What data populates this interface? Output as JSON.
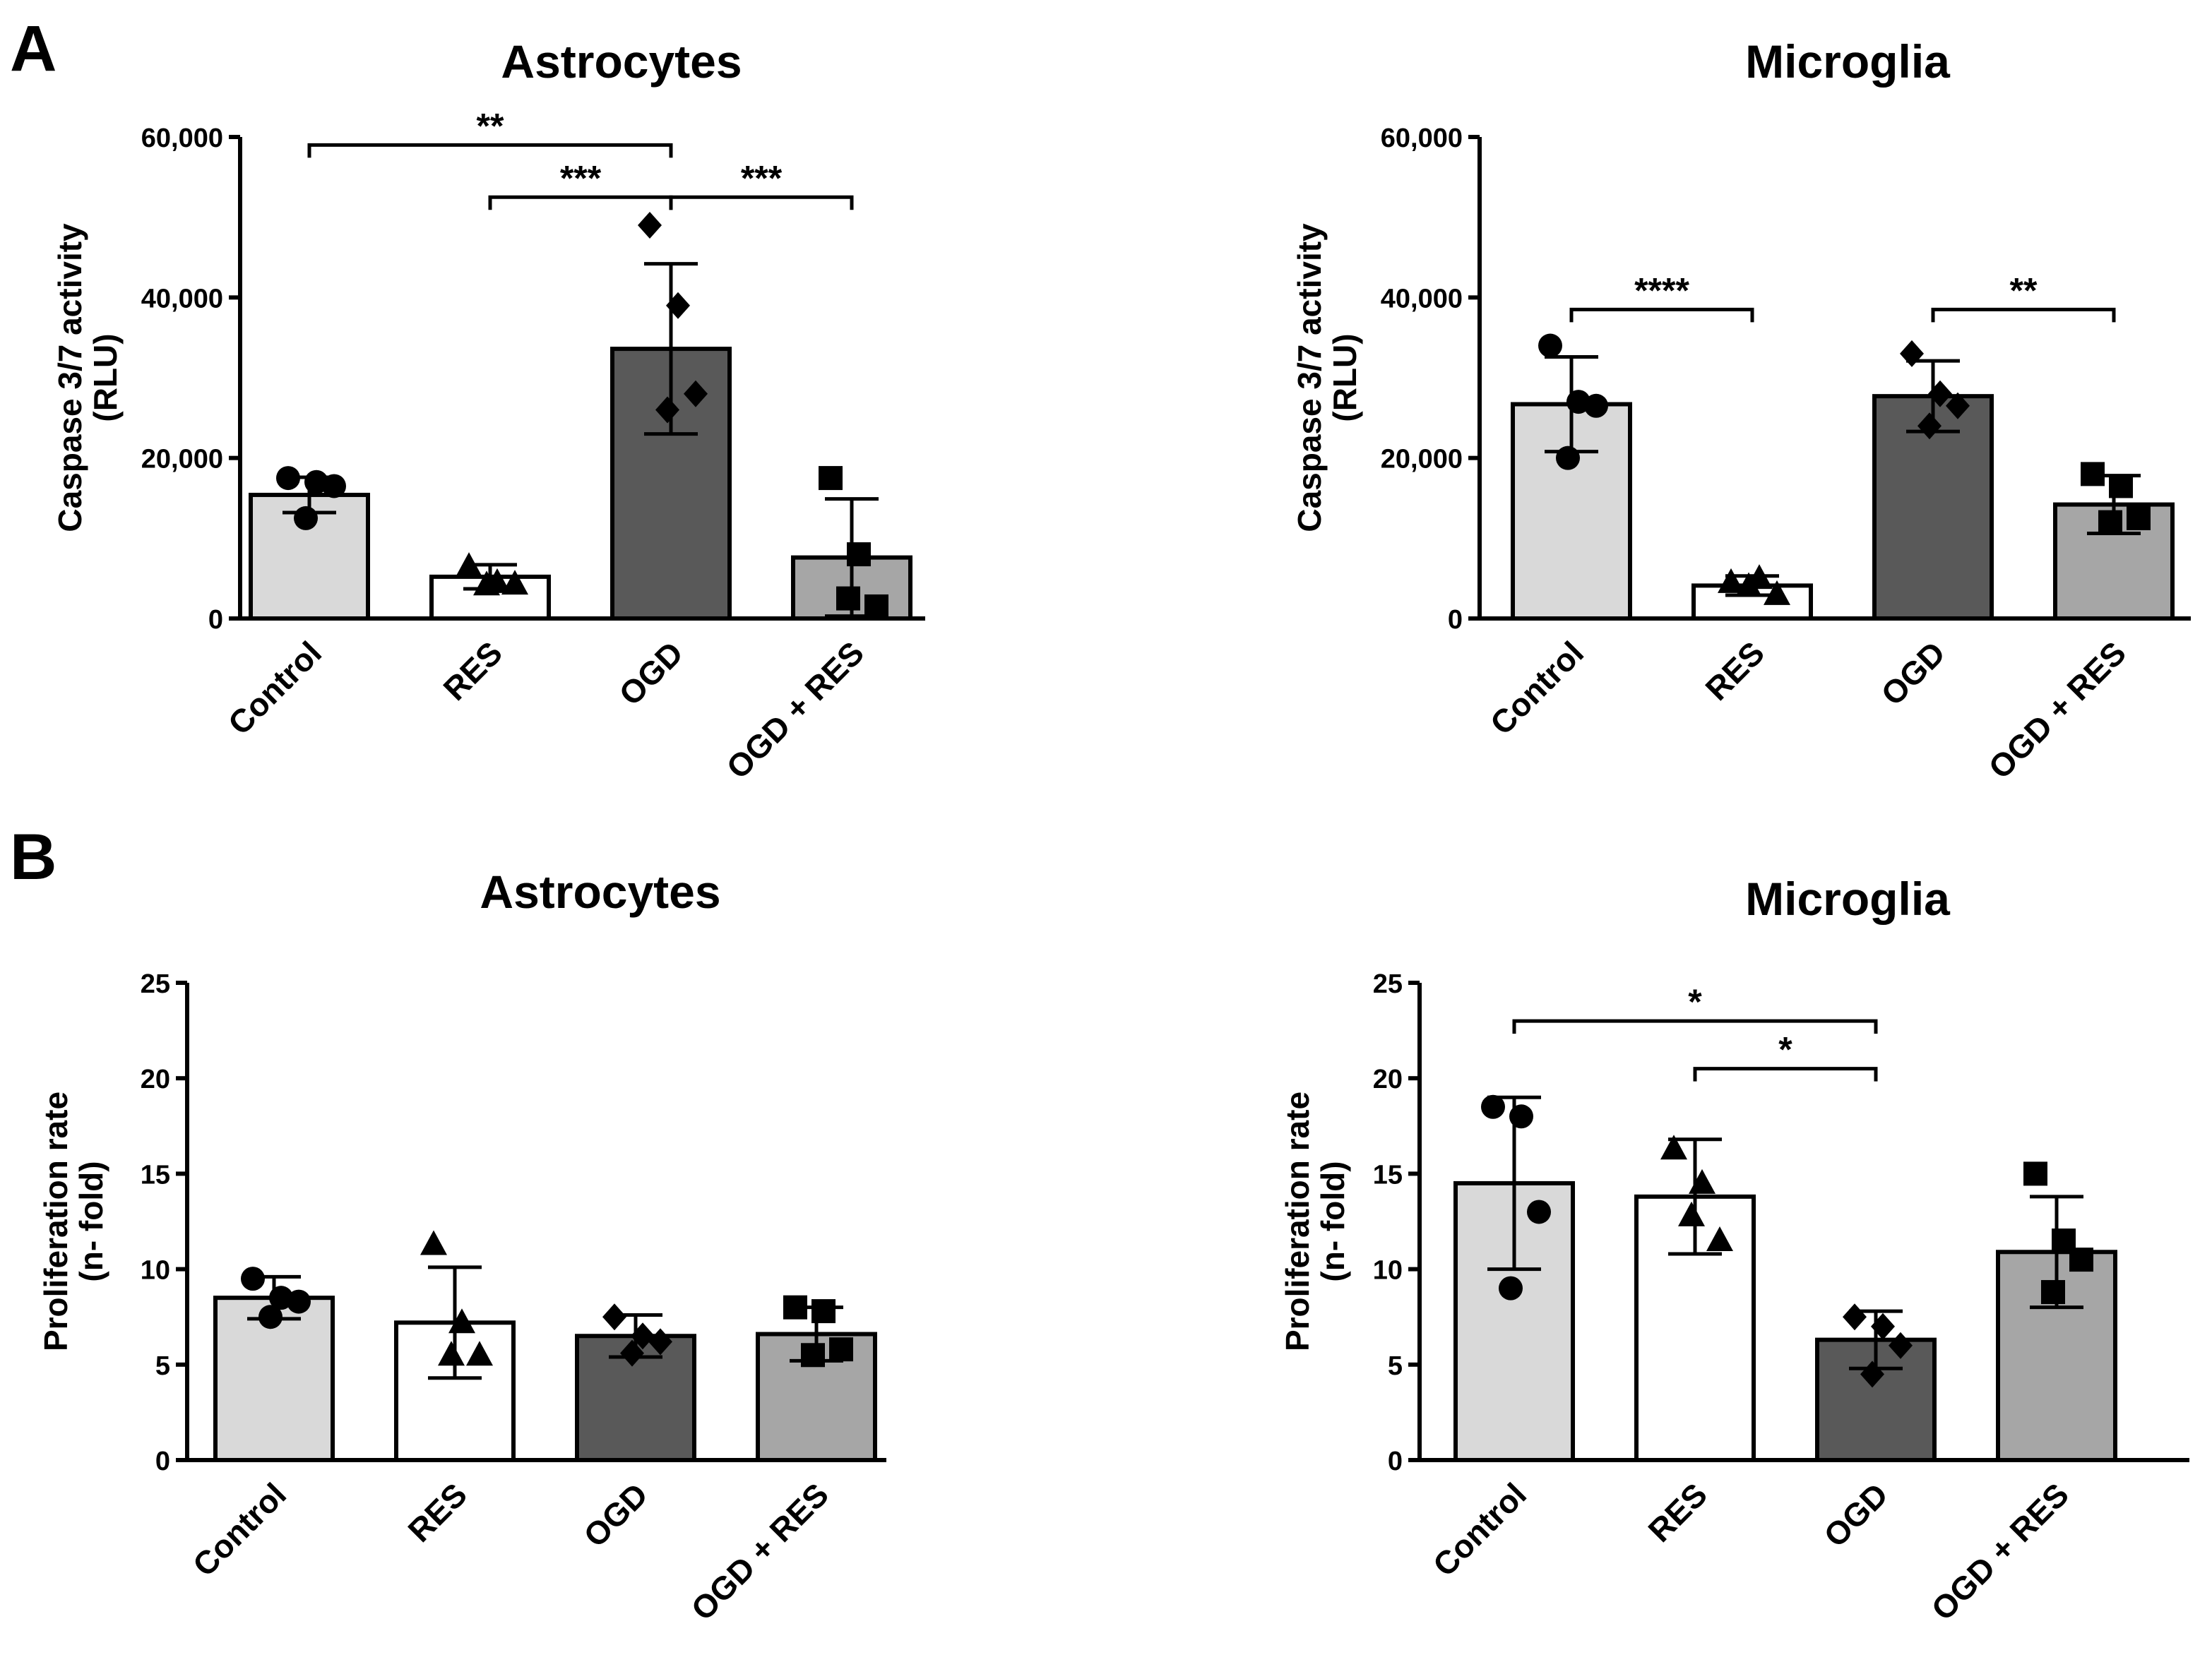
{
  "panels": {
    "a": {
      "letter": "A"
    },
    "b": {
      "letter": "B"
    }
  },
  "colors": {
    "Control": "#d9d9d9",
    "RES": "#ffffff",
    "OGD": "#595959",
    "OGD + RES": "#a6a6a6"
  },
  "chart_data": [
    {
      "type": "bar",
      "panel": "A",
      "title": "Astrocytes",
      "ylabel_lines": [
        "Caspase 3/7 activity",
        "(RLU)"
      ],
      "categories": [
        "Control",
        "RES",
        "OGD",
        "OGD + RES"
      ],
      "values": [
        15400,
        5200,
        33600,
        7600
      ],
      "errors": [
        2200,
        1500,
        10600,
        7300
      ],
      "markers": [
        "circle",
        "triangle",
        "diamond",
        "square"
      ],
      "points": [
        [
          17500,
          17000,
          16500,
          12500
        ],
        [
          6500,
          4500,
          4300,
          4200
        ],
        [
          49000,
          39000,
          28000,
          26000
        ],
        [
          17500,
          8000,
          1500,
          2500
        ]
      ],
      "ylim": [
        0,
        60000
      ],
      "yticks": [
        0,
        20000,
        40000,
        60000
      ],
      "ytick_labels": [
        "0",
        "20,000",
        "40,000",
        "60,000"
      ],
      "significance": [
        {
          "from": 0,
          "to": 2,
          "y": 59000,
          "label": "**"
        },
        {
          "from": 1,
          "to": 2,
          "y": 52500,
          "label": "***"
        },
        {
          "from": 2,
          "to": 3,
          "y": 52500,
          "label": "***"
        }
      ]
    },
    {
      "type": "bar",
      "panel": "A",
      "title": "Microglia",
      "ylabel_lines": [
        "Caspase 3/7 activity",
        "(RLU)"
      ],
      "categories": [
        "Control",
        "RES",
        "OGD",
        "OGD + RES"
      ],
      "values": [
        26700,
        4100,
        27700,
        14200
      ],
      "errors": [
        5900,
        1200,
        4400,
        3600
      ],
      "markers": [
        "circle",
        "triangle",
        "diamond",
        "square"
      ],
      "points": [
        [
          34000,
          27000,
          26500,
          20000
        ],
        [
          4500,
          5000,
          3000,
          4000
        ],
        [
          33000,
          28000,
          26500,
          24000
        ],
        [
          18000,
          16500,
          12500,
          12000
        ]
      ],
      "ylim": [
        0,
        60000
      ],
      "yticks": [
        0,
        20000,
        40000,
        60000
      ],
      "ytick_labels": [
        "0",
        "20,000",
        "40,000",
        "60,000"
      ],
      "significance": [
        {
          "from": 0,
          "to": 1,
          "y": 38500,
          "label": "****"
        },
        {
          "from": 2,
          "to": 3,
          "y": 38500,
          "label": "**"
        }
      ]
    },
    {
      "type": "bar",
      "panel": "B",
      "title": "Astrocytes",
      "ylabel_lines": [
        "Proliferation rate",
        "(n- fold)"
      ],
      "categories": [
        "Control",
        "RES",
        "OGD",
        "OGD + RES"
      ],
      "values": [
        8.5,
        7.2,
        6.5,
        6.6
      ],
      "errors": [
        1.1,
        2.9,
        1.1,
        1.4
      ],
      "markers": [
        "circle",
        "triangle",
        "diamond",
        "square"
      ],
      "points": [
        [
          9.5,
          8.5,
          8.3,
          7.5
        ],
        [
          11.3,
          7.2,
          5.5,
          5.5
        ],
        [
          7.5,
          6.5,
          6.2,
          5.6
        ],
        [
          8.0,
          7.8,
          5.8,
          5.5
        ]
      ],
      "ylim": [
        0,
        25
      ],
      "yticks": [
        0,
        5,
        10,
        15,
        20,
        25
      ],
      "ytick_labels": [
        "0",
        "5",
        "10",
        "15",
        "20",
        "25"
      ],
      "significance": []
    },
    {
      "type": "bar",
      "panel": "B",
      "title": "Microglia",
      "ylabel_lines": [
        "Proliferation rate",
        "(n- fold)"
      ],
      "categories": [
        "Control",
        "RES",
        "OGD",
        "OGD + RES"
      ],
      "values": [
        14.5,
        13.8,
        6.3,
        10.9
      ],
      "errors": [
        4.5,
        3.0,
        1.5,
        2.9
      ],
      "markers": [
        "circle",
        "triangle",
        "diamond",
        "square"
      ],
      "points": [
        [
          18.5,
          18.0,
          13.0,
          9.0
        ],
        [
          16.3,
          14.5,
          11.5,
          12.8
        ],
        [
          7.5,
          7.0,
          6.0,
          4.5
        ],
        [
          15.0,
          11.5,
          10.5,
          8.8
        ]
      ],
      "ylim": [
        0,
        25
      ],
      "yticks": [
        0,
        5,
        10,
        15,
        20,
        25
      ],
      "ytick_labels": [
        "0",
        "5",
        "10",
        "15",
        "20",
        "25"
      ],
      "significance": [
        {
          "from": 0,
          "to": 2,
          "y": 23.0,
          "label": "*"
        },
        {
          "from": 1,
          "to": 2,
          "y": 20.5,
          "label": "*"
        }
      ]
    }
  ]
}
